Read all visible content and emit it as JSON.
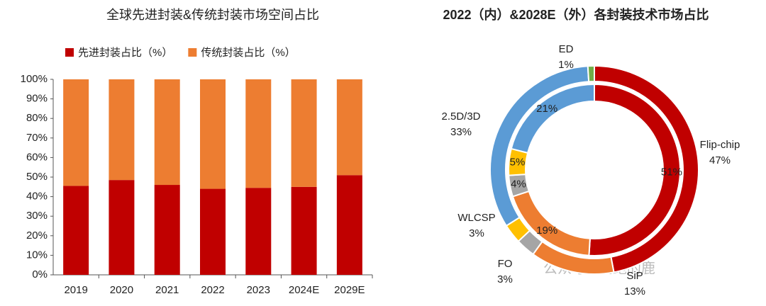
{
  "chart_data": [
    {
      "type": "bar",
      "stacked": true,
      "title": "全球先进封装&传统封装市场空间占比",
      "categories": [
        "2019",
        "2020",
        "2021",
        "2022",
        "2023",
        "2024E",
        "2029E"
      ],
      "series": [
        {
          "name": "先进封装占比（%）",
          "color": "#c00000",
          "values": [
            45.5,
            48.5,
            46,
            44,
            44.5,
            45,
            51
          ]
        },
        {
          "name": "传统封装占比（%）",
          "color": "#ed7d31",
          "values": [
            54.5,
            51.5,
            54,
            56,
            55.5,
            55,
            49
          ]
        }
      ],
      "ylim": [
        0,
        100
      ],
      "yticks": [
        {
          "value": 0,
          "label": "0%"
        },
        {
          "value": 10,
          "label": "10%"
        },
        {
          "value": 20,
          "label": "20%"
        },
        {
          "value": 30,
          "label": "30%"
        },
        {
          "value": 40,
          "label": "40%"
        },
        {
          "value": 50,
          "label": "50%"
        },
        {
          "value": 60,
          "label": "60%"
        },
        {
          "value": 70,
          "label": "70%"
        },
        {
          "value": 80,
          "label": "80%"
        },
        {
          "value": 90,
          "label": "90%"
        },
        {
          "value": 100,
          "label": "100%"
        }
      ],
      "legend": "top"
    },
    {
      "type": "donut",
      "title": "2022（内）&2028E（外）各封装技术市场占比",
      "categories": [
        "Flip-chip",
        "SiP",
        "FO",
        "WLCSP",
        "2.5D/3D",
        "ED"
      ],
      "colors": [
        "#c00000",
        "#ed7d31",
        "#a5a5a5",
        "#ffc000",
        "#5b9bd5",
        "#70ad47"
      ],
      "series": [
        {
          "values": [
            51,
            19,
            4,
            5,
            21,
            null
          ],
          "value_labels": [
            "51%",
            "19%",
            "4%",
            "5%",
            "21%",
            null
          ]
        },
        {
          "values": [
            47,
            13,
            3,
            3,
            33,
            1
          ],
          "value_labels": [
            "47%",
            "13%",
            "3%",
            "3%",
            "33%",
            "1%"
          ]
        }
      ],
      "watermark": "公众号 · 飞跑的鹿"
    }
  ]
}
